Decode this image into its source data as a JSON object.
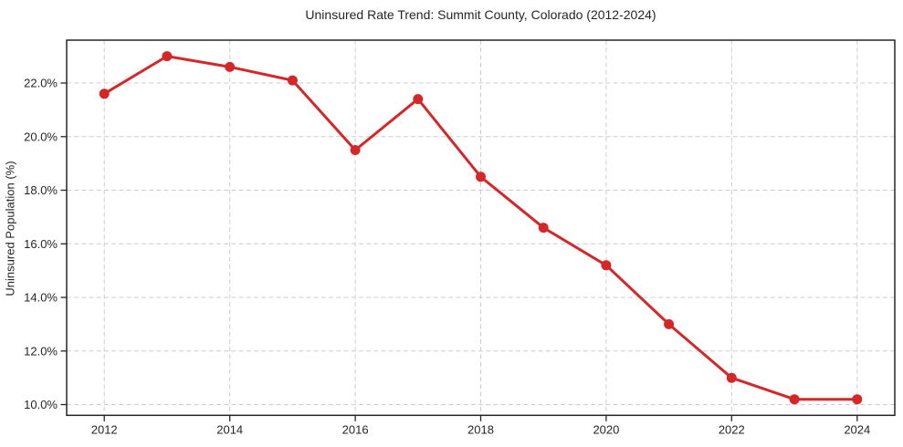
{
  "figure": {
    "title": "Uninsured Rate Trend: Summit County, Colorado (2012-2024)"
  },
  "chart_data": {
    "type": "line",
    "title": "Uninsured Rate Trend: Summit County, Colorado (2012-2024)",
    "xlabel": "",
    "ylabel": "Uninsured Population (%)",
    "x": [
      2012,
      2013,
      2014,
      2015,
      2016,
      2017,
      2018,
      2019,
      2020,
      2021,
      2022,
      2023,
      2024
    ],
    "values": [
      21.6,
      23.0,
      22.6,
      22.1,
      19.5,
      21.4,
      18.5,
      16.6,
      15.2,
      13.0,
      11.0,
      10.2,
      10.2
    ],
    "series_name": "Uninsured rate",
    "xticks": [
      2012,
      2014,
      2016,
      2018,
      2020,
      2022,
      2024
    ],
    "xtick_labels": [
      "2012",
      "2014",
      "2016",
      "2018",
      "2020",
      "2022",
      "2024"
    ],
    "yticks": [
      10,
      12,
      14,
      16,
      18,
      20,
      22
    ],
    "ytick_labels": [
      "10.0%",
      "12.0%",
      "14.0%",
      "16.0%",
      "18.0%",
      "20.0%",
      "22.0%"
    ],
    "xlim": [
      2011.4,
      2024.6
    ],
    "ylim": [
      9.6,
      23.6
    ],
    "grid": true,
    "grid_style": "dashed",
    "legend": "none",
    "line_color": "#d62728",
    "marker": "circle",
    "marker_size": 5.5,
    "line_width": 3
  },
  "colors": {
    "line": "#d62728",
    "grid": "#cdcdcd",
    "spine": "#262626",
    "text": "#262626",
    "background": "#ffffff"
  }
}
